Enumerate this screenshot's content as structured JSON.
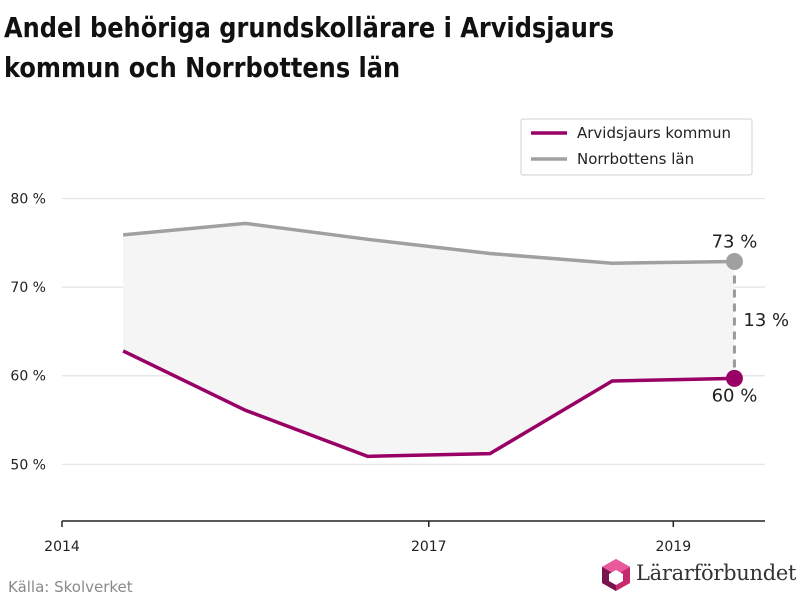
{
  "header": {
    "title": "Andel behöriga grundskollärare i Arvidsjaurs kommun och Norrbottens län"
  },
  "footer": {
    "source": "Källa: Skolverket",
    "logo_text": "Lärarförbundet"
  },
  "chart_data": {
    "type": "line",
    "title": "Andel behöriga grundskollärare i Arvidsjaurs kommun och Norrbottens län",
    "xlabel": "",
    "ylabel": "",
    "x": [
      2014.5,
      2015.5,
      2016.5,
      2017.5,
      2018.5,
      2019.5
    ],
    "xlim": [
      2014,
      2019.75
    ],
    "xticks": [
      2014,
      2017,
      2019
    ],
    "ylim": [
      43.6,
      90
    ],
    "yticks": [
      50,
      60,
      70,
      80
    ],
    "ytick_labels": [
      "50 %",
      "60 %",
      "70 %",
      "80 %"
    ],
    "grid": true,
    "legend_position": "top-right",
    "series": [
      {
        "name": "Arvidsjaurs kommun",
        "color": "#990066",
        "values": [
          62.8,
          56.1,
          50.9,
          51.2,
          59.4,
          59.7
        ]
      },
      {
        "name": "Norrbottens län",
        "color": "#a0a0a0",
        "values": [
          75.9,
          77.2,
          75.4,
          73.8,
          72.7,
          72.9
        ]
      }
    ],
    "annotations": {
      "last_top": "73 %",
      "last_bottom": "60 %",
      "gap": "13 %"
    }
  }
}
